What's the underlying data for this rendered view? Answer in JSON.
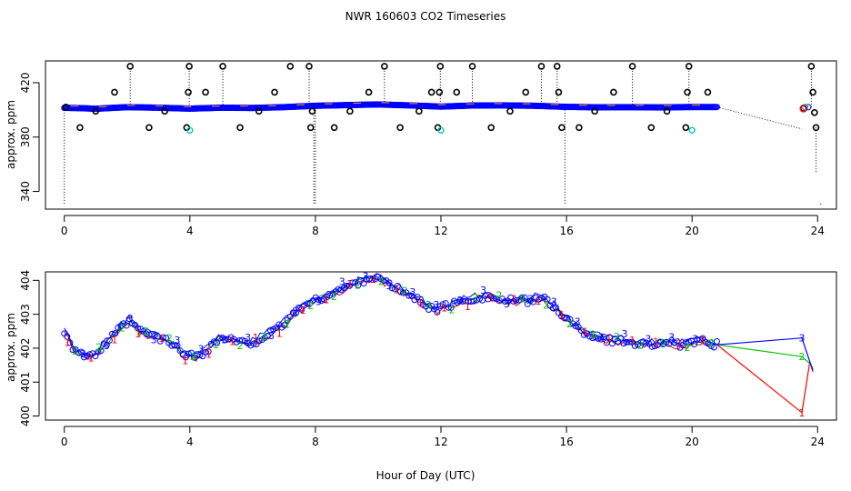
{
  "title": "NWR  160603  CO2 Timeseries",
  "xlabel": "Hour of Day (UTC)",
  "chart_data": [
    {
      "type": "scatter",
      "name": "top",
      "ylabel": "approx. ppm",
      "xlim": [
        -0.6,
        24.6
      ],
      "ylim": [
        327,
        436
      ],
      "xticks": [
        0,
        4,
        8,
        12,
        16,
        20,
        24
      ],
      "yticks": [
        340,
        380,
        420
      ],
      "ytick_labels": [
        "340",
        "380",
        "420"
      ],
      "colors": {
        "main": "#0000ff",
        "calib": "#000000",
        "alt": "#00c8c8",
        "flag": "#ff0000"
      },
      "baseline": [
        [
          0.0,
          401.5
        ],
        [
          0.5,
          401.3
        ],
        [
          1.0,
          400.8
        ],
        [
          2.0,
          402.0
        ],
        [
          3.0,
          401.6
        ],
        [
          4.0,
          400.9
        ],
        [
          5.0,
          401.6
        ],
        [
          6.0,
          401.4
        ],
        [
          7.0,
          402.0
        ],
        [
          8.0,
          403.0
        ],
        [
          9.0,
          403.5
        ],
        [
          10.0,
          404.0
        ],
        [
          11.0,
          403.3
        ],
        [
          12.0,
          402.4
        ],
        [
          13.0,
          403.2
        ],
        [
          14.0,
          403.3
        ],
        [
          15.0,
          403.0
        ],
        [
          16.0,
          402.2
        ],
        [
          17.0,
          401.9
        ],
        [
          18.0,
          402.0
        ],
        [
          19.0,
          401.8
        ],
        [
          20.0,
          402.1
        ],
        [
          20.8,
          402.1
        ]
      ],
      "tail": [
        [
          23.55,
          401.4
        ],
        [
          23.7,
          402.0
        ]
      ],
      "trail": [
        [
          20.8,
          402.1
        ],
        [
          23.5,
          386.0
        ]
      ],
      "calib": [
        [
          0.05,
          402
        ],
        [
          0.5,
          387
        ],
        [
          1.0,
          399
        ],
        [
          1.6,
          413
        ],
        [
          2.1,
          432
        ],
        [
          2.7,
          387
        ],
        [
          3.2,
          399
        ],
        [
          3.9,
          387
        ],
        [
          3.95,
          413
        ],
        [
          3.98,
          432
        ],
        [
          4.5,
          413
        ],
        [
          5.05,
          432
        ],
        [
          5.6,
          387
        ],
        [
          6.2,
          399
        ],
        [
          6.7,
          413
        ],
        [
          7.2,
          432
        ],
        [
          7.8,
          432
        ],
        [
          7.85,
          387
        ],
        [
          7.9,
          399
        ],
        [
          8.6,
          387
        ],
        [
          9.1,
          399
        ],
        [
          9.7,
          413
        ],
        [
          10.2,
          432
        ],
        [
          10.7,
          387
        ],
        [
          11.3,
          399
        ],
        [
          11.7,
          413
        ],
        [
          11.9,
          387
        ],
        [
          11.95,
          413
        ],
        [
          11.98,
          432
        ],
        [
          12.5,
          413
        ],
        [
          13.0,
          432
        ],
        [
          13.6,
          387
        ],
        [
          14.2,
          399
        ],
        [
          14.7,
          413
        ],
        [
          15.2,
          432
        ],
        [
          15.7,
          432
        ],
        [
          15.75,
          413
        ],
        [
          15.85,
          387
        ],
        [
          16.4,
          387
        ],
        [
          16.9,
          399
        ],
        [
          17.5,
          413
        ],
        [
          18.1,
          432
        ],
        [
          18.7,
          387
        ],
        [
          19.2,
          399
        ],
        [
          19.8,
          387
        ],
        [
          19.85,
          413
        ],
        [
          19.9,
          432
        ],
        [
          20.5,
          413
        ],
        [
          23.55,
          401
        ],
        [
          23.8,
          432
        ],
        [
          23.85,
          413
        ],
        [
          23.9,
          398
        ],
        [
          23.95,
          387
        ]
      ],
      "alt_points": [
        [
          4.0,
          385
        ],
        [
          12.0,
          385
        ],
        [
          20.0,
          385
        ],
        [
          23.6,
          402
        ]
      ],
      "flag_points": [
        [
          23.55,
          401
        ]
      ],
      "spikes": [
        [
          0.0,
          402,
          330
        ],
        [
          2.1,
          402,
          432
        ],
        [
          3.98,
          402,
          432
        ],
        [
          5.05,
          402,
          432
        ],
        [
          7.8,
          402,
          432
        ],
        [
          7.95,
          400,
          330
        ],
        [
          8.0,
          400,
          330
        ],
        [
          10.2,
          402,
          432
        ],
        [
          11.98,
          402,
          432
        ],
        [
          13.0,
          402,
          432
        ],
        [
          15.2,
          402,
          432
        ],
        [
          15.7,
          402,
          432
        ],
        [
          15.95,
          400,
          330
        ],
        [
          18.1,
          402,
          432
        ],
        [
          19.9,
          402,
          432
        ],
        [
          23.8,
          402,
          432
        ],
        [
          23.95,
          387,
          353
        ],
        [
          24.1,
          331,
          329
        ]
      ]
    },
    {
      "type": "scatter",
      "name": "bottom",
      "ylabel": "approx. ppm",
      "xlim": [
        -0.6,
        24.6
      ],
      "ylim": [
        399.88,
        404.25
      ],
      "xticks": [
        0,
        4,
        8,
        12,
        16,
        20,
        24
      ],
      "yticks": [
        400,
        401,
        402,
        403,
        404
      ],
      "ytick_labels": [
        "400",
        "401",
        "402",
        "403",
        "404"
      ],
      "series": [
        {
          "name": "1",
          "color": "#ff0000",
          "offset": -0.04,
          "end": [
            [
              20.8,
              402.1
            ],
            [
              23.5,
              400.1
            ],
            [
              23.75,
              401.6
            ],
            [
              23.85,
              401.3
            ]
          ]
        },
        {
          "name": "2",
          "color": "#00c800",
          "offset": 0.02,
          "end": [
            [
              20.8,
              402.1
            ],
            [
              23.5,
              401.75
            ],
            [
              23.75,
              401.55
            ],
            [
              23.85,
              401.4
            ]
          ]
        },
        {
          "name": "3",
          "color": "#0000ff",
          "offset": 0.07,
          "end": [
            [
              20.8,
              402.1
            ],
            [
              23.5,
              402.3
            ],
            [
              23.75,
              401.6
            ],
            [
              23.85,
              401.35
            ]
          ]
        }
      ],
      "profile": [
        [
          0.0,
          402.5
        ],
        [
          0.3,
          402.0
        ],
        [
          0.6,
          401.8
        ],
        [
          0.9,
          401.75
        ],
        [
          1.2,
          402.0
        ],
        [
          1.5,
          402.3
        ],
        [
          1.8,
          402.6
        ],
        [
          2.1,
          402.8
        ],
        [
          2.4,
          402.5
        ],
        [
          2.7,
          402.4
        ],
        [
          3.0,
          402.3
        ],
        [
          3.3,
          402.2
        ],
        [
          3.6,
          402.0
        ],
        [
          3.9,
          401.8
        ],
        [
          4.2,
          401.75
        ],
        [
          4.5,
          401.9
        ],
        [
          4.8,
          402.2
        ],
        [
          5.1,
          402.3
        ],
        [
          5.5,
          402.2
        ],
        [
          5.9,
          402.1
        ],
        [
          6.3,
          402.3
        ],
        [
          6.7,
          402.5
        ],
        [
          7.1,
          402.8
        ],
        [
          7.5,
          403.2
        ],
        [
          8.0,
          403.4
        ],
        [
          8.5,
          403.6
        ],
        [
          9.0,
          403.8
        ],
        [
          9.5,
          404.0
        ],
        [
          9.9,
          404.1
        ],
        [
          10.3,
          403.9
        ],
        [
          10.7,
          403.7
        ],
        [
          11.1,
          403.5
        ],
        [
          11.5,
          403.3
        ],
        [
          11.8,
          403.1
        ],
        [
          12.0,
          403.2
        ],
        [
          12.4,
          403.3
        ],
        [
          12.8,
          403.4
        ],
        [
          13.2,
          403.5
        ],
        [
          13.6,
          403.5
        ],
        [
          14.0,
          403.4
        ],
        [
          14.4,
          403.4
        ],
        [
          14.8,
          403.4
        ],
        [
          15.2,
          403.5
        ],
        [
          15.6,
          403.2
        ],
        [
          16.0,
          402.9
        ],
        [
          16.3,
          402.6
        ],
        [
          16.7,
          402.4
        ],
        [
          17.1,
          402.3
        ],
        [
          17.5,
          402.2
        ],
        [
          17.9,
          402.2
        ],
        [
          18.3,
          402.15
        ],
        [
          18.7,
          402.1
        ],
        [
          19.1,
          402.2
        ],
        [
          19.5,
          402.1
        ],
        [
          19.9,
          402.1
        ],
        [
          20.3,
          402.2
        ],
        [
          20.6,
          402.15
        ],
        [
          20.8,
          402.1
        ]
      ]
    }
  ]
}
